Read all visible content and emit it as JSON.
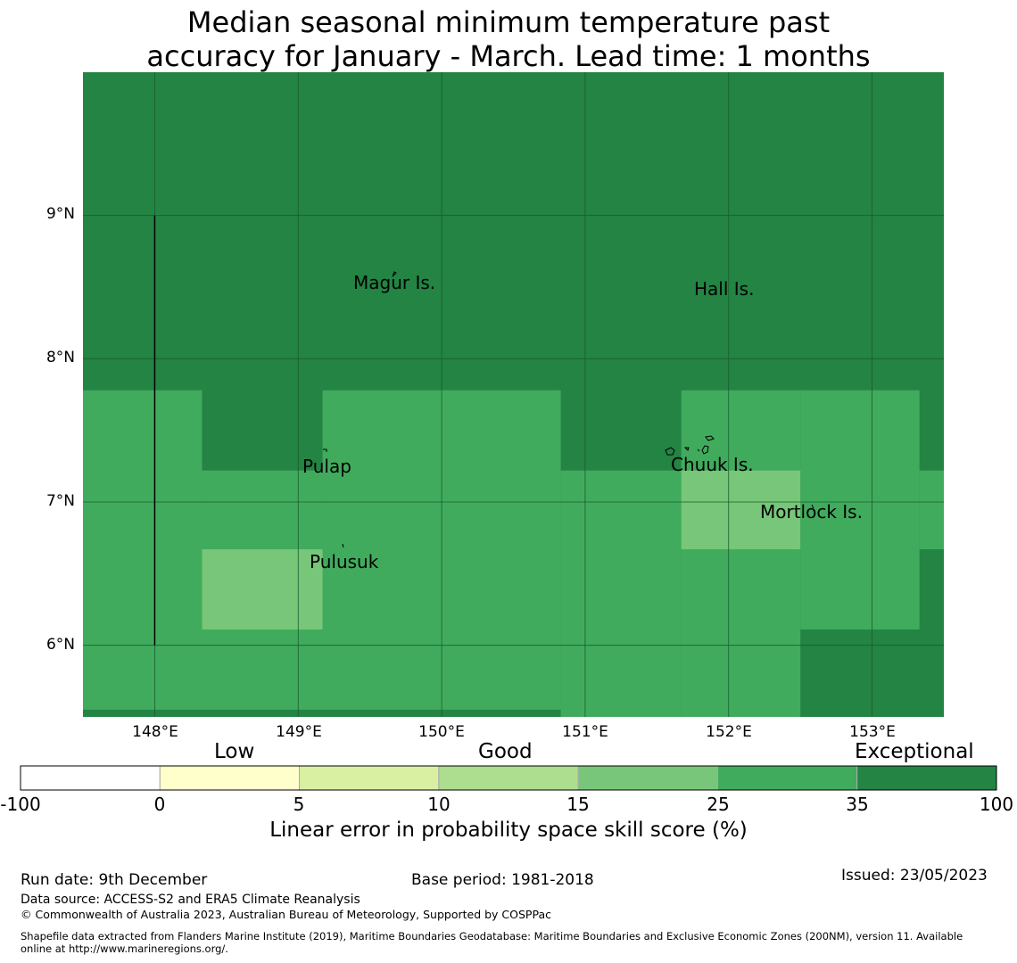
{
  "title_line1": "Median seasonal minimum temperature past",
  "title_line2": "accuracy for January - March. Lead time: 1 months",
  "map": {
    "lat_ticks": [
      "9°N",
      "8°N",
      "7°N",
      "6°N"
    ],
    "lon_ticks": [
      "148°E",
      "149°E",
      "150°E",
      "151°E",
      "152°E",
      "153°E"
    ],
    "places": [
      {
        "name": "Magur Is.",
        "lon": 149.43,
        "lat": 8.5
      },
      {
        "name": "Hall Is.",
        "lon": 151.78,
        "lat": 8.46
      },
      {
        "name": "Pulap",
        "lon": 149.03,
        "lat": 7.21
      },
      {
        "name": "Chuuk Is.",
        "lon": 151.65,
        "lat": 7.22
      },
      {
        "name": "Mortlock Is.",
        "lon": 152.22,
        "lat": 6.89
      },
      {
        "name": "Pulusuk",
        "lon": 149.08,
        "lat": 6.55
      }
    ],
    "lat_range": [
      5.5,
      10.0
    ],
    "lon_range": [
      147.5,
      153.5
    ],
    "skill_colors": {
      "exceptional": "#238443",
      "good_high": "#41ab5d",
      "good_mid": "#78c679"
    },
    "grid_cells": [
      {
        "lon0": 147.5,
        "lon1": 153.5,
        "lat0": 5.5,
        "lat1": 10.0,
        "cat": "exceptional"
      },
      {
        "lon0": 147.5,
        "lon1": 148.33,
        "lat0": 5.55,
        "lat1": 7.78,
        "cat": "good_high"
      },
      {
        "lon0": 148.33,
        "lon1": 149.17,
        "lat0": 5.55,
        "lat1": 7.22,
        "cat": "good_high"
      },
      {
        "lon0": 149.17,
        "lon1": 150.83,
        "lat0": 5.55,
        "lat1": 7.78,
        "cat": "good_high"
      },
      {
        "lon0": 150.83,
        "lon1": 151.67,
        "lat0": 5.5,
        "lat1": 7.22,
        "cat": "good_high"
      },
      {
        "lon0": 151.67,
        "lon1": 152.5,
        "lat0": 5.5,
        "lat1": 7.78,
        "cat": "good_high"
      },
      {
        "lon0": 152.5,
        "lon1": 153.33,
        "lat0": 6.11,
        "lat1": 7.78,
        "cat": "good_high"
      },
      {
        "lon0": 153.33,
        "lon1": 153.5,
        "lat0": 6.67,
        "lat1": 7.22,
        "cat": "good_high"
      },
      {
        "lon0": 148.33,
        "lon1": 149.17,
        "lat0": 6.11,
        "lat1": 6.67,
        "cat": "good_mid"
      },
      {
        "lon0": 151.67,
        "lon1": 152.5,
        "lat0": 6.67,
        "lat1": 7.22,
        "cat": "good_mid"
      }
    ]
  },
  "colorbar": {
    "categories": [
      "Low",
      "Good",
      "Exceptional"
    ],
    "tick_labels": [
      "-100",
      "0",
      "5",
      "10",
      "15",
      "25",
      "35",
      "100"
    ],
    "bin_colors": [
      "#ffffff",
      "#ffffcc",
      "#d9f0a3",
      "#addd8e",
      "#78c679",
      "#41ab5d",
      "#238443"
    ],
    "label": "Linear error in probability space skill score (%)"
  },
  "footer": {
    "run_date": "Run date: 9th December",
    "base_period": "Base period: 1981-2018",
    "issued": "Issued: 23/05/2023",
    "data_source": "Data source: ACCESS-S2 and ERA5 Climate Reanalysis",
    "copyright": "© Commonwealth of Australia 2023, Australian Bureau of Meteorology, Supported by COSPPac",
    "shapefile_line1": "Shapefile data extracted from Flanders Marine Institute (2019), Maritime Boundaries Geodatabase: Maritime Boundaries and Exclusive Economic Zones (200NM), version 11. Available",
    "shapefile_line2": "online at http://www.marineregions.org/."
  }
}
